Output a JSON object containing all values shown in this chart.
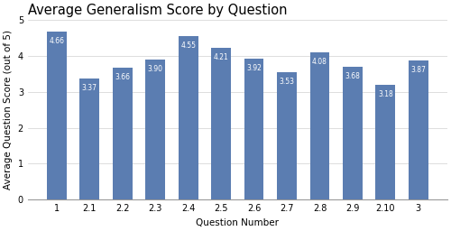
{
  "title": "Average Generalism Score by Question",
  "xlabel": "Question Number",
  "ylabel": "Average Question Score (out of 5)",
  "categories": [
    "1",
    "2.1",
    "2.2",
    "2.3",
    "2.4",
    "2.5",
    "2.6",
    "2.7",
    "2.8",
    "2.9",
    "2.10",
    "3"
  ],
  "values": [
    4.66,
    3.37,
    3.66,
    3.9,
    4.55,
    4.21,
    3.92,
    3.53,
    4.08,
    3.68,
    3.18,
    3.87
  ],
  "bar_color": "#5b7db1",
  "ylim": [
    0,
    5
  ],
  "yticks": [
    0,
    1,
    2,
    3,
    4,
    5
  ],
  "label_color": "white",
  "label_fontsize": 5.5,
  "title_fontsize": 10.5,
  "axis_label_fontsize": 7.5,
  "tick_fontsize": 7,
  "background_color": "#ffffff",
  "grid_color": "#d0d0d0",
  "bar_width": 0.6
}
